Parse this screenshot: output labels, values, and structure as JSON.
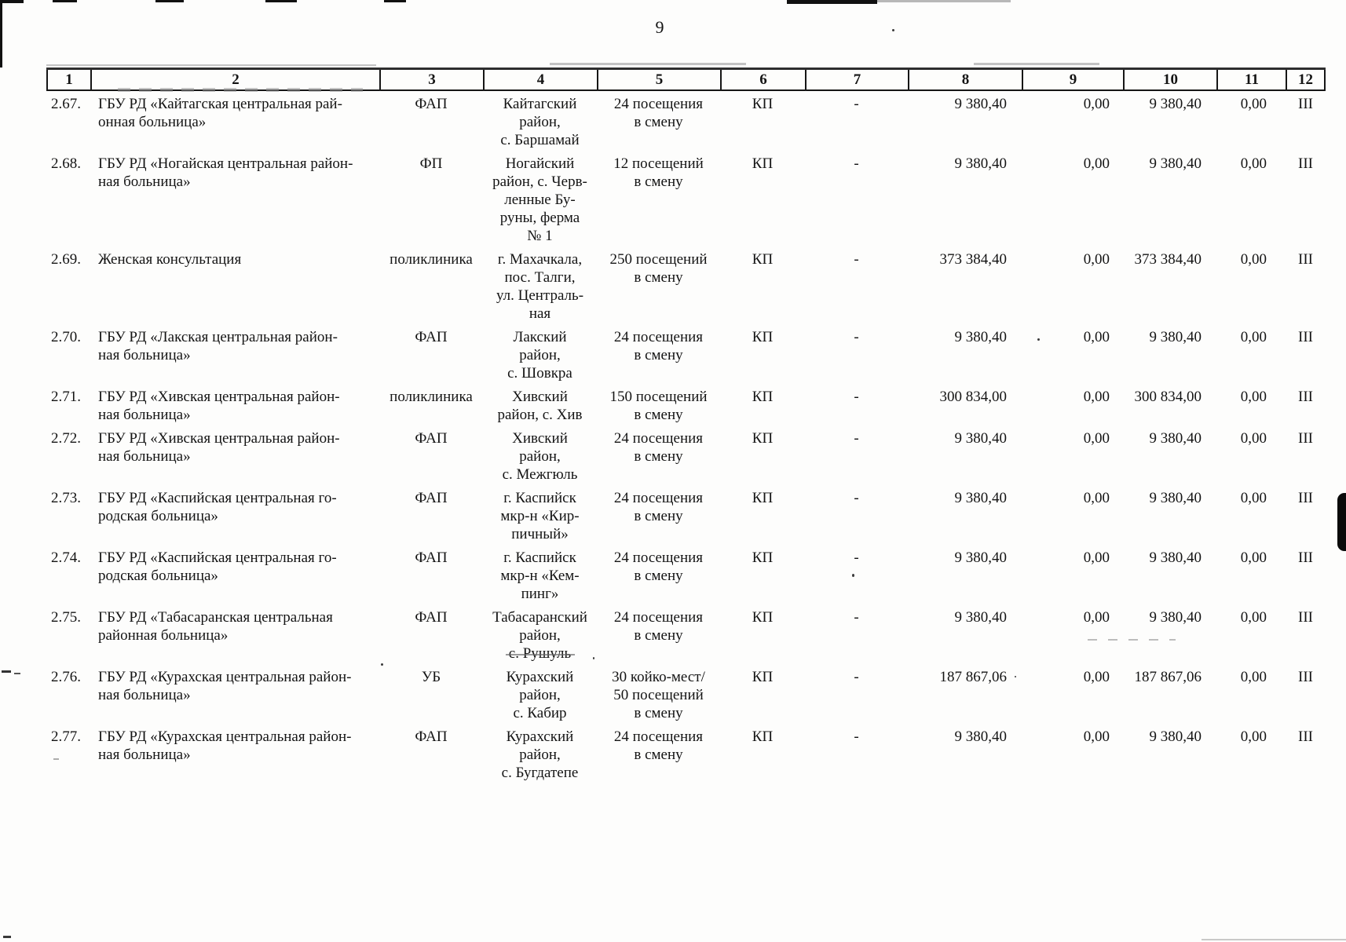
{
  "page": {
    "number": "9"
  },
  "table": {
    "header": [
      "1",
      "2",
      "3",
      "4",
      "5",
      "6",
      "7",
      "8",
      "9",
      "10",
      "11",
      "12"
    ],
    "rows": [
      {
        "num": "2.67.",
        "name_lines": [
          "ГБУ РД «Кайтагская центральная рай-",
          "онная больница»"
        ],
        "type": "ФАП",
        "location_lines": [
          "Кайтагский",
          "район,",
          "с. Баршамай"
        ],
        "capacity_lines": [
          "24 посещения",
          "в смену"
        ],
        "col6": "КП",
        "col7": "-",
        "col8": "9 380,40",
        "col9": "0,00",
        "col10": "9 380,40",
        "col11": "0,00",
        "col12": "III"
      },
      {
        "num": "2.68.",
        "name_lines": [
          "ГБУ РД «Ногайская центральная район-",
          "ная больница»"
        ],
        "type": "ФП",
        "location_lines": [
          "Ногайский",
          "район, с. Черв-",
          "ленные Бу-",
          "руны, ферма",
          "№ 1"
        ],
        "capacity_lines": [
          "12 посещений",
          "в смену"
        ],
        "col6": "КП",
        "col7": "-",
        "col8": "9 380,40",
        "col9": "0,00",
        "col10": "9 380,40",
        "col11": "0,00",
        "col12": "III"
      },
      {
        "num": "2.69.",
        "name_lines": [
          "Женская консультация"
        ],
        "type": "поликлиника",
        "location_lines": [
          "г. Махачкала,",
          "пос. Талги,",
          "ул. Централь-",
          "ная"
        ],
        "capacity_lines": [
          "250 посещений",
          "в смену"
        ],
        "col6": "КП",
        "col7": "-",
        "col8": "373 384,40",
        "col9": "0,00",
        "col10": "373 384,40",
        "col11": "0,00",
        "col12": "III"
      },
      {
        "num": "2.70.",
        "name_lines": [
          "ГБУ РД «Лакская центральная район-",
          "ная больница»"
        ],
        "type": "ФАП",
        "location_lines": [
          "Лакский",
          "район,",
          "с. Шовкра"
        ],
        "capacity_lines": [
          "24 посещения",
          "в смену"
        ],
        "col6": "КП",
        "col7": "-",
        "col8": "9 380,40",
        "col9": "0,00",
        "col10": "9 380,40",
        "col11": "0,00",
        "col12": "III"
      },
      {
        "num": "2.71.",
        "name_lines": [
          "ГБУ РД «Хивская центральная район-",
          "ная больница»"
        ],
        "type": "поликлиника",
        "location_lines": [
          "Хивский",
          "район, с. Хив"
        ],
        "capacity_lines": [
          "150 посещений",
          "в смену"
        ],
        "col6": "КП",
        "col7": "-",
        "col8": "300 834,00",
        "col9": "0,00",
        "col10": "300 834,00",
        "col11": "0,00",
        "col12": "III"
      },
      {
        "num": "2.72.",
        "name_lines": [
          "ГБУ РД «Хивская центральная район-",
          "ная больница»"
        ],
        "type": "ФАП",
        "location_lines": [
          "Хивский",
          "район,",
          "с. Межгюль"
        ],
        "capacity_lines": [
          "24 посещения",
          "в смену"
        ],
        "col6": "КП",
        "col7": "-",
        "col8": "9 380,40",
        "col9": "0,00",
        "col10": "9 380,40",
        "col11": "0,00",
        "col12": "III"
      },
      {
        "num": "2.73.",
        "name_lines": [
          "ГБУ РД «Каспийская центральная го-",
          "родская больница»"
        ],
        "type": "ФАП",
        "location_lines": [
          "г. Каспийск",
          "мкр-н «Кир-",
          "пичный»"
        ],
        "capacity_lines": [
          "24 посещения",
          "в смену"
        ],
        "col6": "КП",
        "col7": "-",
        "col8": "9 380,40",
        "col9": "0,00",
        "col10": "9 380,40",
        "col11": "0,00",
        "col12": "III"
      },
      {
        "num": "2.74.",
        "name_lines": [
          "ГБУ РД «Каспийская центральная го-",
          "родская больница»"
        ],
        "type": "ФАП",
        "location_lines": [
          "г. Каспийск",
          "мкр-н «Кем-",
          "пинг»"
        ],
        "capacity_lines": [
          "24 посещения",
          "в смену"
        ],
        "col6": "КП",
        "col7": "-",
        "col8": "9 380,40",
        "col9": "0,00",
        "col10": "9 380,40",
        "col11": "0,00",
        "col12": "III"
      },
      {
        "num": "2.75.",
        "name_lines": [
          "ГБУ РД «Табасаранская центральная",
          "районная больница»"
        ],
        "type": "ФАП",
        "location_lines": [
          "Табасаранский",
          "район,",
          "с. Рушуль"
        ],
        "capacity_lines": [
          "24 посещения",
          "в смену"
        ],
        "col6": "КП",
        "col7": "-",
        "col8": "9 380,40",
        "col9": "0,00",
        "col10": "9 380,40",
        "col11": "0,00",
        "col12": "III"
      },
      {
        "num": "2.76.",
        "name_lines": [
          "ГБУ РД «Курахская центральная район-",
          "ная больница»"
        ],
        "type": "УБ",
        "location_lines": [
          "Курахский",
          "район,",
          "с. Кабир"
        ],
        "capacity_lines": [
          "30 койко-мест/",
          "50 посещений",
          "в смену"
        ],
        "col6": "КП",
        "col7": "-",
        "col8": "187 867,06",
        "col9": "0,00",
        "col10": "187 867,06",
        "col11": "0,00",
        "col12": "III"
      },
      {
        "num": "2.77.",
        "name_lines": [
          "ГБУ РД «Курахская центральная район-",
          "ная больница»"
        ],
        "type": "ФАП",
        "location_lines": [
          "Курахский",
          "район,",
          "с. Бугдатепе"
        ],
        "capacity_lines": [
          "24 посещения",
          "в смену"
        ],
        "col6": "КП",
        "col7": "-",
        "col8": "9 380,40",
        "col9": "0,00",
        "col10": "9 380,40",
        "col11": "0,00",
        "col12": "III"
      }
    ]
  }
}
